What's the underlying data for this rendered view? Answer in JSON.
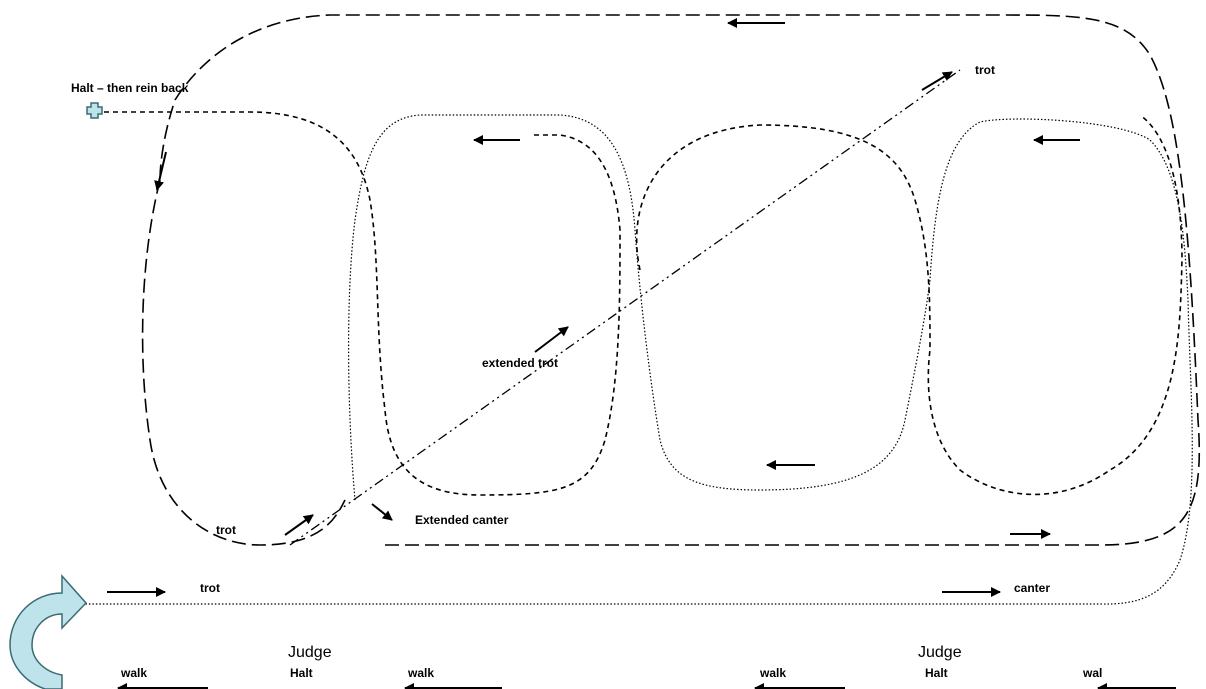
{
  "labels": {
    "halt_rein_back": "Halt – then rein back",
    "trot_top": "trot",
    "extended_trot": "extended trot",
    "trot_lower_left": "trot",
    "extended_canter": "Extended canter",
    "trot_bottom": "trot",
    "canter_bottom": "canter"
  },
  "judges": [
    {
      "label": "Judge",
      "sub": "Halt",
      "walk_left": "walk",
      "walk_right": "walk"
    },
    {
      "label": "Judge",
      "sub": "Halt",
      "walk_left": "walk",
      "walk_right": "wal"
    }
  ],
  "colors": {
    "halt_marker_fill": "#bfe3ea",
    "halt_marker_stroke": "#3a6b75",
    "uturn_fill": "#bfe3ea",
    "uturn_stroke": "#3a6b75",
    "line": "#000000"
  },
  "icons": [
    "halt-marker-icon",
    "u-turn-arrow-icon"
  ]
}
